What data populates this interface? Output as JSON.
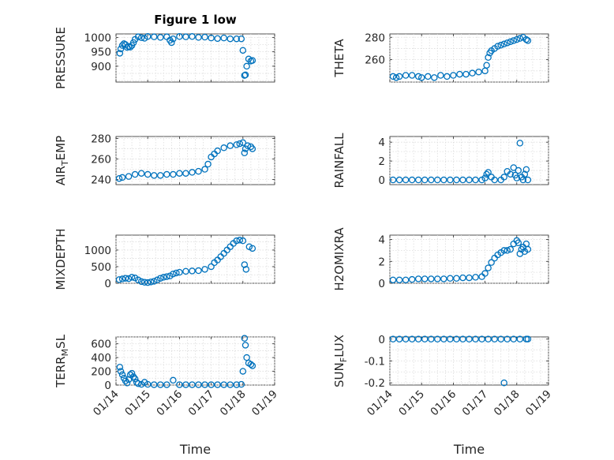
{
  "figure": {
    "title": "Figure 1 low",
    "background": "#ffffff",
    "marker_color": "#0072BD"
  },
  "chart_data": [
    {
      "type": "scatter",
      "id": "pressure",
      "title": "Figure 1 low",
      "ylabel": "PRESSURE",
      "xlabel": "",
      "ylim": [
        845,
        1012
      ],
      "yticks": [
        1000,
        950,
        900
      ],
      "xlim": [
        0,
        5
      ],
      "xticks": [],
      "grid": true,
      "points": [
        [
          0.12,
          945
        ],
        [
          0.15,
          960
        ],
        [
          0.2,
          972
        ],
        [
          0.25,
          978
        ],
        [
          0.3,
          975
        ],
        [
          0.35,
          965
        ],
        [
          0.4,
          968
        ],
        [
          0.45,
          966
        ],
        [
          0.5,
          972
        ],
        [
          0.55,
          982
        ],
        [
          0.6,
          993
        ],
        [
          0.7,
          1002
        ],
        [
          0.8,
          999
        ],
        [
          0.9,
          997
        ],
        [
          1.0,
          1003
        ],
        [
          1.2,
          1002
        ],
        [
          1.4,
          1000
        ],
        [
          1.6,
          1002
        ],
        [
          1.7,
          990
        ],
        [
          1.75,
          982
        ],
        [
          1.8,
          995
        ],
        [
          2.0,
          1003
        ],
        [
          2.2,
          1002
        ],
        [
          2.4,
          1003
        ],
        [
          2.6,
          1000
        ],
        [
          2.8,
          1001
        ],
        [
          3.0,
          998
        ],
        [
          3.2,
          996
        ],
        [
          3.4,
          998
        ],
        [
          3.6,
          995
        ],
        [
          3.8,
          995
        ],
        [
          3.95,
          995
        ],
        [
          4.0,
          955
        ],
        [
          4.05,
          868
        ],
        [
          4.08,
          870
        ],
        [
          4.12,
          900
        ],
        [
          4.18,
          925
        ],
        [
          4.25,
          918
        ],
        [
          4.3,
          920
        ]
      ]
    },
    {
      "type": "scatter",
      "id": "theta",
      "ylabel": "THETA",
      "xlabel": "",
      "ylim": [
        240,
        283
      ],
      "yticks": [
        280,
        260
      ],
      "xlim": [
        0,
        5
      ],
      "xticks": [],
      "grid": true,
      "points": [
        [
          0.1,
          245
        ],
        [
          0.2,
          244
        ],
        [
          0.3,
          245
        ],
        [
          0.5,
          246
        ],
        [
          0.7,
          246
        ],
        [
          0.9,
          245
        ],
        [
          1.0,
          244
        ],
        [
          1.2,
          245
        ],
        [
          1.4,
          244
        ],
        [
          1.6,
          246
        ],
        [
          1.8,
          245
        ],
        [
          2.0,
          246
        ],
        [
          2.2,
          247
        ],
        [
          2.4,
          247
        ],
        [
          2.6,
          248
        ],
        [
          2.8,
          249
        ],
        [
          3.0,
          250
        ],
        [
          3.05,
          255
        ],
        [
          3.1,
          262
        ],
        [
          3.15,
          266
        ],
        [
          3.2,
          268
        ],
        [
          3.3,
          270
        ],
        [
          3.4,
          272
        ],
        [
          3.5,
          273
        ],
        [
          3.6,
          274
        ],
        [
          3.7,
          275
        ],
        [
          3.8,
          276
        ],
        [
          3.9,
          277
        ],
        [
          4.0,
          278
        ],
        [
          4.1,
          279
        ],
        [
          4.2,
          280
        ],
        [
          4.3,
          278
        ],
        [
          4.35,
          277
        ]
      ]
    },
    {
      "type": "scatter",
      "id": "air-temp",
      "ylabel": "AIR_TEMP",
      "xlabel": "",
      "ylim": [
        235,
        282
      ],
      "yticks": [
        280,
        260,
        240
      ],
      "xlim": [
        0,
        5
      ],
      "xticks": [],
      "grid": true,
      "points": [
        [
          0.1,
          241
        ],
        [
          0.2,
          242
        ],
        [
          0.4,
          243
        ],
        [
          0.6,
          245
        ],
        [
          0.8,
          246
        ],
        [
          1.0,
          245
        ],
        [
          1.2,
          244
        ],
        [
          1.4,
          244
        ],
        [
          1.6,
          245
        ],
        [
          1.8,
          245
        ],
        [
          2.0,
          246
        ],
        [
          2.2,
          246
        ],
        [
          2.4,
          247
        ],
        [
          2.6,
          248
        ],
        [
          2.8,
          250
        ],
        [
          2.9,
          255
        ],
        [
          3.0,
          262
        ],
        [
          3.1,
          265
        ],
        [
          3.2,
          268
        ],
        [
          3.4,
          271
        ],
        [
          3.6,
          273
        ],
        [
          3.8,
          274
        ],
        [
          3.9,
          275
        ],
        [
          4.0,
          276
        ],
        [
          4.05,
          266
        ],
        [
          4.08,
          270
        ],
        [
          4.15,
          273
        ],
        [
          4.25,
          272
        ],
        [
          4.3,
          270
        ]
      ]
    },
    {
      "type": "scatter",
      "id": "rainfall",
      "ylabel": "RAINFALL",
      "xlabel": "",
      "ylim": [
        -0.5,
        4.6
      ],
      "yticks": [
        4,
        2,
        0
      ],
      "xlim": [
        0,
        5
      ],
      "xticks": [],
      "grid": true,
      "points": [
        [
          0.1,
          0
        ],
        [
          0.3,
          0
        ],
        [
          0.5,
          0
        ],
        [
          0.7,
          0
        ],
        [
          0.9,
          0
        ],
        [
          1.1,
          0
        ],
        [
          1.3,
          0
        ],
        [
          1.5,
          0
        ],
        [
          1.7,
          0
        ],
        [
          1.9,
          0
        ],
        [
          2.1,
          0
        ],
        [
          2.3,
          0
        ],
        [
          2.5,
          0
        ],
        [
          2.7,
          0
        ],
        [
          2.9,
          0
        ],
        [
          3.0,
          0.2
        ],
        [
          3.05,
          0.6
        ],
        [
          3.1,
          0.8
        ],
        [
          3.2,
          0.3
        ],
        [
          3.3,
          0
        ],
        [
          3.5,
          0
        ],
        [
          3.6,
          0.3
        ],
        [
          3.7,
          0.9
        ],
        [
          3.8,
          0.6
        ],
        [
          3.9,
          1.3
        ],
        [
          3.95,
          0.5
        ],
        [
          4.0,
          0.2
        ],
        [
          4.05,
          1.0
        ],
        [
          4.1,
          3.9
        ],
        [
          4.15,
          0.3
        ],
        [
          4.2,
          0
        ],
        [
          4.25,
          0.6
        ],
        [
          4.3,
          1.1
        ],
        [
          4.35,
          0
        ]
      ]
    },
    {
      "type": "scatter",
      "id": "mixdepth",
      "ylabel": "MIXDEPTH",
      "xlabel": "",
      "ylim": [
        0,
        1450
      ],
      "yticks": [
        1000,
        500,
        0
      ],
      "xlim": [
        0,
        5
      ],
      "xticks": [],
      "grid": true,
      "points": [
        [
          0.1,
          110
        ],
        [
          0.2,
          130
        ],
        [
          0.3,
          150
        ],
        [
          0.4,
          140
        ],
        [
          0.5,
          180
        ],
        [
          0.6,
          160
        ],
        [
          0.7,
          100
        ],
        [
          0.8,
          50
        ],
        [
          0.9,
          30
        ],
        [
          1.0,
          20
        ],
        [
          1.1,
          40
        ],
        [
          1.2,
          60
        ],
        [
          1.3,
          100
        ],
        [
          1.4,
          150
        ],
        [
          1.5,
          180
        ],
        [
          1.6,
          200
        ],
        [
          1.7,
          220
        ],
        [
          1.8,
          280
        ],
        [
          1.9,
          310
        ],
        [
          2.0,
          330
        ],
        [
          2.2,
          360
        ],
        [
          2.4,
          370
        ],
        [
          2.6,
          380
        ],
        [
          2.8,
          420
        ],
        [
          3.0,
          500
        ],
        [
          3.1,
          620
        ],
        [
          3.2,
          700
        ],
        [
          3.3,
          800
        ],
        [
          3.4,
          900
        ],
        [
          3.5,
          1000
        ],
        [
          3.6,
          1100
        ],
        [
          3.7,
          1200
        ],
        [
          3.8,
          1280
        ],
        [
          3.9,
          1300
        ],
        [
          4.0,
          1280
        ],
        [
          4.05,
          560
        ],
        [
          4.1,
          420
        ],
        [
          4.2,
          1100
        ],
        [
          4.3,
          1050
        ]
      ]
    },
    {
      "type": "scatter",
      "id": "h2omixra",
      "ylabel": "H2OMIXRA",
      "xlabel": "",
      "ylim": [
        0,
        4.4
      ],
      "yticks": [
        4,
        2,
        0
      ],
      "xlim": [
        0,
        5
      ],
      "xticks": [],
      "grid": true,
      "points": [
        [
          0.1,
          0.3
        ],
        [
          0.3,
          0.3
        ],
        [
          0.5,
          0.3
        ],
        [
          0.7,
          0.35
        ],
        [
          0.9,
          0.4
        ],
        [
          1.1,
          0.4
        ],
        [
          1.3,
          0.4
        ],
        [
          1.5,
          0.4
        ],
        [
          1.7,
          0.4
        ],
        [
          1.9,
          0.45
        ],
        [
          2.1,
          0.45
        ],
        [
          2.3,
          0.5
        ],
        [
          2.5,
          0.5
        ],
        [
          2.7,
          0.55
        ],
        [
          2.9,
          0.6
        ],
        [
          3.0,
          0.9
        ],
        [
          3.1,
          1.4
        ],
        [
          3.2,
          1.9
        ],
        [
          3.3,
          2.3
        ],
        [
          3.4,
          2.6
        ],
        [
          3.5,
          2.8
        ],
        [
          3.6,
          3.0
        ],
        [
          3.7,
          3.0
        ],
        [
          3.8,
          3.1
        ],
        [
          3.9,
          3.6
        ],
        [
          4.0,
          3.9
        ],
        [
          4.05,
          3.7
        ],
        [
          4.1,
          2.7
        ],
        [
          4.15,
          3.1
        ],
        [
          4.2,
          3.3
        ],
        [
          4.25,
          2.9
        ],
        [
          4.3,
          3.6
        ],
        [
          4.35,
          3.1
        ]
      ]
    },
    {
      "type": "scatter",
      "id": "terr-msl",
      "ylabel": "TERR_MSL",
      "xlabel": "Time",
      "ylim": [
        0,
        700
      ],
      "yticks": [
        600,
        400,
        200,
        0
      ],
      "xlim": [
        0,
        5
      ],
      "xticks": [
        "01/14",
        "01/15",
        "01/16",
        "01/17",
        "01/18",
        "01/19"
      ],
      "grid": true,
      "points": [
        [
          0.12,
          260
        ],
        [
          0.15,
          200
        ],
        [
          0.2,
          150
        ],
        [
          0.25,
          100
        ],
        [
          0.3,
          60
        ],
        [
          0.35,
          30
        ],
        [
          0.4,
          80
        ],
        [
          0.45,
          150
        ],
        [
          0.5,
          170
        ],
        [
          0.55,
          120
        ],
        [
          0.6,
          90
        ],
        [
          0.65,
          40
        ],
        [
          0.7,
          20
        ],
        [
          0.8,
          10
        ],
        [
          0.9,
          40
        ],
        [
          1.0,
          10
        ],
        [
          1.2,
          5
        ],
        [
          1.4,
          5
        ],
        [
          1.6,
          5
        ],
        [
          1.8,
          70
        ],
        [
          2.0,
          5
        ],
        [
          2.2,
          5
        ],
        [
          2.4,
          5
        ],
        [
          2.6,
          5
        ],
        [
          2.8,
          5
        ],
        [
          3.0,
          5
        ],
        [
          3.2,
          5
        ],
        [
          3.4,
          5
        ],
        [
          3.6,
          5
        ],
        [
          3.8,
          5
        ],
        [
          3.95,
          10
        ],
        [
          4.0,
          200
        ],
        [
          4.05,
          680
        ],
        [
          4.08,
          580
        ],
        [
          4.12,
          400
        ],
        [
          4.18,
          320
        ],
        [
          4.25,
          300
        ],
        [
          4.3,
          280
        ]
      ]
    },
    {
      "type": "scatter",
      "id": "sun-flux",
      "ylabel": "SUN_FLUX",
      "xlabel": "Time",
      "ylim": [
        -0.21,
        0.01
      ],
      "yticks": [
        "0",
        "-0.1",
        "-0.2"
      ],
      "xlim": [
        0,
        5
      ],
      "xticks": [
        "01/14",
        "01/15",
        "01/16",
        "01/17",
        "01/18",
        "01/19"
      ],
      "grid": true,
      "points": [
        [
          0.1,
          0
        ],
        [
          0.3,
          0
        ],
        [
          0.5,
          0
        ],
        [
          0.7,
          0
        ],
        [
          0.9,
          0
        ],
        [
          1.1,
          0
        ],
        [
          1.3,
          0
        ],
        [
          1.5,
          0
        ],
        [
          1.7,
          0
        ],
        [
          1.9,
          0
        ],
        [
          2.1,
          0
        ],
        [
          2.3,
          0
        ],
        [
          2.5,
          0
        ],
        [
          2.7,
          0
        ],
        [
          2.9,
          0
        ],
        [
          3.1,
          0
        ],
        [
          3.3,
          0
        ],
        [
          3.5,
          0
        ],
        [
          3.6,
          -0.2
        ],
        [
          3.7,
          0
        ],
        [
          3.9,
          0
        ],
        [
          4.1,
          0
        ],
        [
          4.3,
          0
        ],
        [
          4.35,
          0
        ]
      ]
    }
  ]
}
